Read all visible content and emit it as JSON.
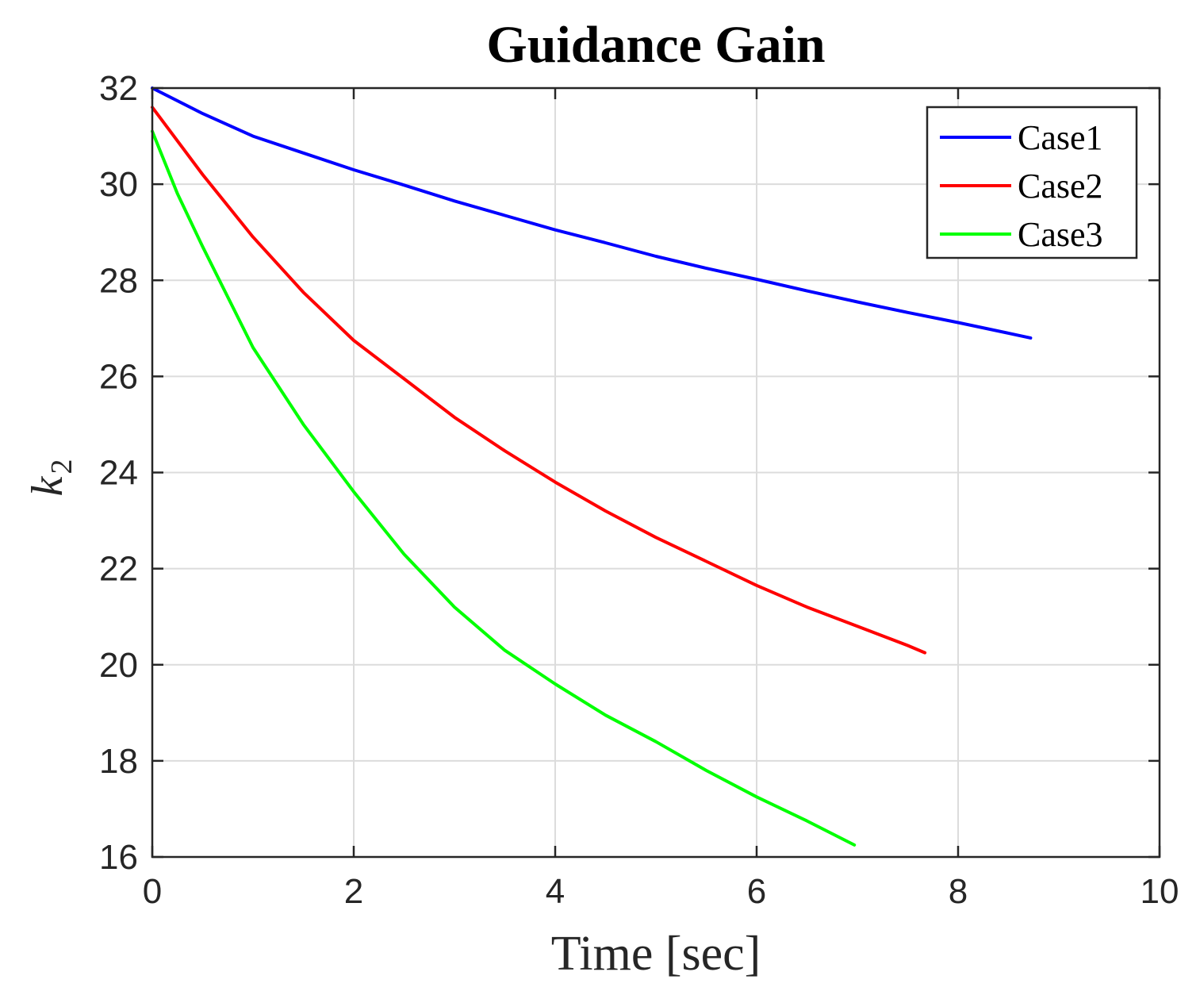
{
  "chart_data": {
    "type": "line",
    "title": "Guidance Gain",
    "xlabel": "Time [sec]",
    "ylabel": "k",
    "ylabel_subscript": "2",
    "xlim": [
      0,
      10
    ],
    "ylim": [
      16,
      32
    ],
    "xticks": [
      0,
      2,
      4,
      6,
      8,
      10
    ],
    "yticks": [
      16,
      18,
      20,
      22,
      24,
      26,
      28,
      30,
      32
    ],
    "grid": true,
    "legend_position": "top-right",
    "series": [
      {
        "name": "Case1",
        "color": "#0000ff",
        "x": [
          0,
          0.5,
          1,
          1.5,
          2,
          2.5,
          3,
          3.5,
          4,
          4.5,
          5,
          5.5,
          6,
          6.5,
          7,
          7.5,
          8,
          8.5,
          8.72
        ],
        "y": [
          32.0,
          31.47,
          31.0,
          30.65,
          30.3,
          29.98,
          29.65,
          29.35,
          29.05,
          28.78,
          28.5,
          28.25,
          28.02,
          27.78,
          27.55,
          27.33,
          27.12,
          26.9,
          26.8
        ]
      },
      {
        "name": "Case2",
        "color": "#ff0000",
        "x": [
          0,
          0.5,
          1,
          1.5,
          2,
          2.5,
          3,
          3.5,
          4,
          4.5,
          5,
          5.5,
          6,
          6.5,
          7,
          7.5,
          7.67
        ],
        "y": [
          31.6,
          30.2,
          28.9,
          27.75,
          26.75,
          25.95,
          25.15,
          24.45,
          23.8,
          23.2,
          22.65,
          22.15,
          21.65,
          21.2,
          20.8,
          20.4,
          20.25
        ]
      },
      {
        "name": "Case3",
        "color": "#00ff00",
        "x": [
          0,
          0.25,
          0.5,
          1,
          1.5,
          2,
          2.5,
          3,
          3.5,
          4,
          4.5,
          5,
          5.5,
          6,
          6.5,
          6.97
        ],
        "y": [
          31.1,
          29.8,
          28.7,
          26.6,
          25.0,
          23.6,
          22.3,
          21.2,
          20.3,
          19.6,
          18.95,
          18.4,
          17.8,
          17.25,
          16.75,
          16.25
        ]
      }
    ]
  }
}
